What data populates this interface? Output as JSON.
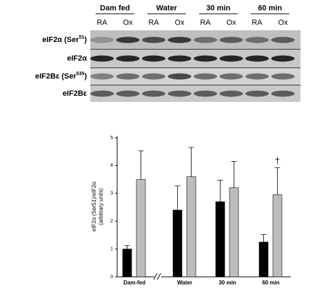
{
  "blot": {
    "groups": [
      "Dam fed",
      "Water",
      "30 min",
      "60 min"
    ],
    "lanes": [
      "RA",
      "Ox",
      "RA",
      "Ox",
      "RA",
      "Ox",
      "RA",
      "Ox"
    ],
    "rows": [
      {
        "text": "eIF2α (Ser",
        "sup": "51",
        "end": ")"
      },
      {
        "text": "eIF2α"
      },
      {
        "text": "eIF2Bε (Ser",
        "sup": "535",
        "end": ")"
      },
      {
        "text": "eIF2Bε"
      }
    ]
  },
  "chart_data": {
    "type": "bar",
    "ylabel": "eIF2α (Ser51)/eIF2α",
    "ylabel2": "(arbitrary units)",
    "categories": [
      "Dam-fed",
      "Water",
      "30 min",
      "60 min"
    ],
    "series": [
      {
        "color": "#000000",
        "values": [
          1.0,
          2.4,
          2.7,
          1.25
        ],
        "errors": [
          0.12,
          0.87,
          0.77,
          0.27
        ]
      },
      {
        "color": "#bdbdbd",
        "values": [
          3.5,
          3.6,
          3.2,
          2.95
        ],
        "errors": [
          1.03,
          1.05,
          0.95,
          0.97
        ]
      }
    ],
    "annotation": "†",
    "ylim": [
      0,
      5
    ],
    "yticks": [
      0,
      1,
      2,
      3,
      4,
      5
    ]
  }
}
